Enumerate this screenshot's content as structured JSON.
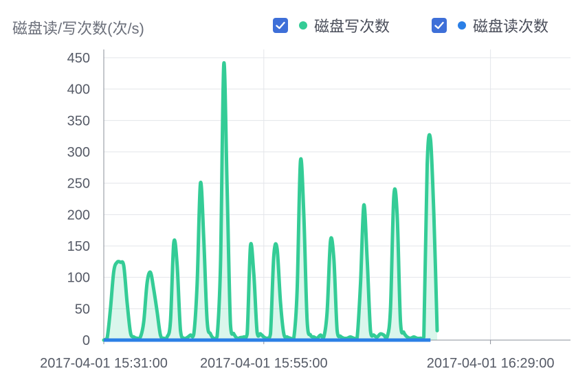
{
  "title": "磁盘读/写次数(次/s)",
  "legend": [
    {
      "label": "磁盘写次数",
      "color": "#34cc96",
      "checked": true
    },
    {
      "label": "磁盘读次数",
      "color": "#2b7fe6",
      "checked": true
    }
  ],
  "chart_data": {
    "type": "area",
    "title": "磁盘读/写次数(次/s)",
    "ylim": [
      0,
      450
    ],
    "y_ticks": [
      0,
      50,
      100,
      150,
      200,
      250,
      300,
      350,
      400,
      450
    ],
    "x_ticks": [
      "2017-04-01 15:31:00",
      "2017-04-01 15:55:00",
      "2017-04-01 16:29:00"
    ],
    "x_tick_minutes": [
      0,
      24,
      58
    ],
    "x_range_minutes": [
      0,
      70
    ],
    "grid": true,
    "legend_position": "top-right",
    "series": [
      {
        "name": "磁盘写次数",
        "color": "#34cc96",
        "x_minutes": [
          0,
          0.5,
          1.0,
          1.5,
          2.0,
          2.5,
          3.0,
          3.5,
          4.0,
          4.5,
          5.0,
          5.5,
          6.0,
          6.5,
          7.0,
          7.5,
          8.0,
          8.5,
          9.0,
          9.5,
          10.0,
          10.5,
          11.0,
          11.5,
          12.0,
          12.5,
          13.0,
          13.5,
          14.0,
          14.5,
          15.0,
          15.5,
          16.0,
          16.5,
          17.0,
          17.5,
          18.0,
          18.5,
          19.0,
          19.5,
          20.0,
          20.5,
          21.0,
          21.5,
          22.0,
          22.5,
          23.0,
          23.5,
          24.0,
          24.5,
          25.0,
          25.5,
          26.0,
          26.5,
          27.0,
          27.5,
          28.0,
          28.5,
          29.0,
          29.5,
          30.0,
          30.5,
          31.0,
          31.5,
          32.0,
          32.5,
          33.0,
          33.5,
          34.0,
          34.5,
          35.0,
          35.5,
          36.0,
          36.5,
          37.0,
          37.5,
          38.0,
          38.5,
          39.0,
          39.5,
          40.0,
          40.5,
          41.0,
          41.5,
          42.0,
          42.5,
          43.0,
          43.5,
          44.0,
          44.5,
          45.0,
          45.5,
          46.0,
          46.5,
          47.0,
          47.5,
          48.0,
          48.5,
          49.0,
          49.5,
          50.0,
          50.5,
          51.0,
          51.5,
          52.0,
          52.5,
          53.0,
          53.5,
          54.0,
          54.5,
          55.0,
          55.5,
          56.0,
          56.5,
          57.0,
          57.5,
          58.0
        ],
        "values": [
          0,
          3,
          50,
          110,
          124,
          124,
          118,
          60,
          12,
          5,
          3,
          5,
          30,
          92,
          108,
          80,
          45,
          8,
          3,
          5,
          30,
          155,
          120,
          15,
          3,
          4,
          8,
          10,
          90,
          250,
          160,
          30,
          10,
          3,
          6,
          120,
          440,
          240,
          25,
          10,
          3,
          4,
          5,
          10,
          150,
          105,
          12,
          10,
          5,
          3,
          10,
          135,
          145,
          60,
          10,
          5,
          3,
          3,
          80,
          285,
          200,
          30,
          8,
          5,
          3,
          8,
          5,
          45,
          158,
          130,
          15,
          6,
          3,
          3,
          5,
          3,
          4,
          90,
          215,
          130,
          15,
          8,
          5,
          10,
          8,
          5,
          50,
          230,
          200,
          30,
          12,
          5,
          3,
          5,
          3,
          3,
          5,
          280,
          320,
          200,
          15,
          0,
          0,
          0,
          0,
          0,
          0,
          0,
          0,
          0,
          0,
          0,
          0,
          0,
          0,
          0,
          0
        ]
      },
      {
        "name": "磁盘读次数",
        "color": "#2b7fe6",
        "x_minutes": [
          0,
          49
        ],
        "values": [
          0,
          0
        ]
      }
    ]
  }
}
